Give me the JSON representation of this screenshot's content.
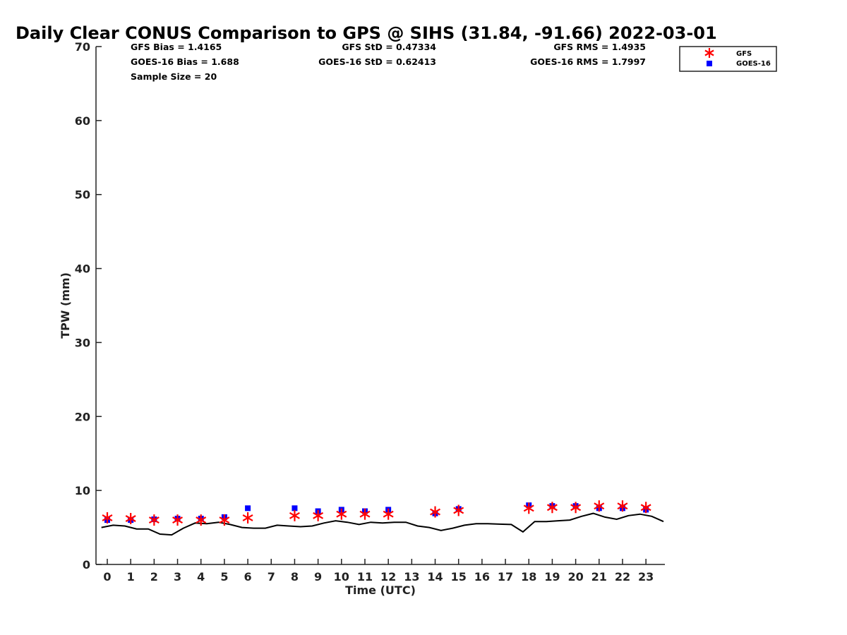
{
  "chart_data": {
    "type": "scatter",
    "title": "Daily Clear CONUS Comparison to GPS @ SIHS (31.84, -91.66) 2022-03-01",
    "xlabel": "Time (UTC)",
    "ylabel": "TPW (mm)",
    "xlim": [
      -0.5,
      23.75
    ],
    "ylim": [
      0,
      70
    ],
    "x_ticks": [
      "0",
      "1",
      "2",
      "3",
      "4",
      "5",
      "6",
      "7",
      "8",
      "9",
      "10",
      "11",
      "12",
      "13",
      "14",
      "15",
      "16",
      "17",
      "18",
      "19",
      "20",
      "21",
      "22",
      "23"
    ],
    "y_ticks": [
      "0",
      "10",
      "20",
      "30",
      "40",
      "50",
      "60",
      "70"
    ],
    "grid": false,
    "legend_position": "top-right",
    "stats": {
      "gfs_bias": "GFS Bias = 1.4165",
      "goes_bias": "GOES-16 Bias = 1.688",
      "sample_size": "Sample Size = 20",
      "gfs_std": "GFS StD = 0.47334",
      "goes_std": "GOES-16 StD = 0.62413",
      "gfs_rms": "GFS RMS = 1.4935",
      "goes_rms": "GOES-16 RMS = 1.7997"
    },
    "series": [
      {
        "name": "GFS",
        "marker": "asterisk",
        "color": "#ff0000",
        "x": [
          0,
          1,
          2,
          3,
          4,
          5,
          6,
          8,
          9,
          10,
          11,
          12,
          14,
          15,
          18,
          19,
          20,
          21,
          22,
          23
        ],
        "y": [
          6.3,
          6.2,
          6.0,
          6.0,
          6.0,
          6.0,
          6.3,
          6.6,
          6.6,
          6.8,
          6.8,
          6.8,
          7.1,
          7.3,
          7.6,
          7.7,
          7.7,
          7.9,
          7.9,
          7.7
        ]
      },
      {
        "name": "GOES-16",
        "marker": "square",
        "color": "#0000ff",
        "x": [
          0,
          1,
          2,
          3,
          4,
          5,
          6,
          8,
          9,
          10,
          11,
          12,
          14,
          15,
          18,
          19,
          20,
          21,
          22,
          23
        ],
        "y": [
          6.0,
          6.0,
          6.1,
          6.2,
          6.2,
          6.4,
          7.6,
          7.6,
          7.2,
          7.4,
          7.2,
          7.4,
          6.9,
          7.5,
          8.0,
          7.9,
          7.9,
          7.6,
          7.6,
          7.4
        ]
      },
      {
        "name": "GPS",
        "marker": "line",
        "color": "#000000",
        "x": [
          -0.25,
          0.25,
          0.75,
          1.25,
          1.75,
          2.25,
          2.75,
          3.25,
          3.75,
          4.25,
          4.75,
          5.25,
          5.75,
          6.25,
          6.75,
          7.25,
          7.75,
          8.25,
          8.75,
          9.25,
          9.75,
          10.25,
          10.75,
          11.25,
          11.75,
          12.25,
          12.75,
          13.25,
          13.75,
          14.25,
          14.75,
          15.25,
          15.75,
          16.25,
          16.75,
          17.25,
          17.75,
          18.25,
          18.75,
          19.25,
          19.75,
          20.25,
          20.75,
          21.25,
          21.75,
          22.25,
          22.75,
          23.25,
          23.75
        ],
        "y": [
          5.0,
          5.3,
          5.2,
          4.8,
          4.8,
          4.1,
          4.0,
          4.9,
          5.6,
          5.5,
          5.7,
          5.4,
          5.0,
          4.9,
          4.9,
          5.3,
          5.2,
          5.1,
          5.2,
          5.6,
          5.9,
          5.7,
          5.4,
          5.7,
          5.6,
          5.7,
          5.7,
          5.2,
          5.0,
          4.6,
          4.9,
          5.3,
          5.5,
          5.5,
          5.45,
          5.4,
          4.4,
          5.8,
          5.8,
          5.9,
          6.0,
          6.5,
          6.9,
          6.4,
          6.1,
          6.6,
          6.8,
          6.5,
          5.8
        ]
      }
    ]
  }
}
